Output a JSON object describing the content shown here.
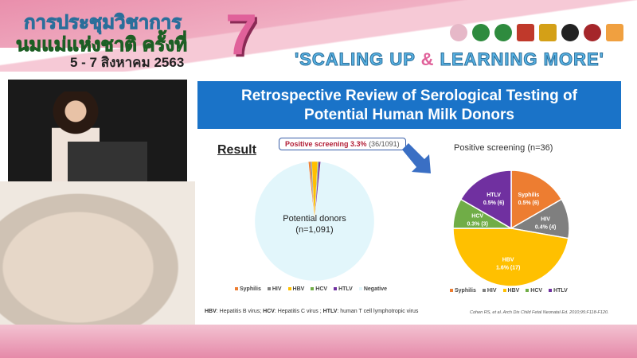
{
  "banner": {
    "line1": "การประชุมวิชาการ",
    "line2": "นมแม่แห่งชาติ ครั้งที่",
    "dates": "5 - 7 สิงหาคม 2563",
    "number": "7",
    "slogan_a": "'SCALING UP ",
    "slogan_amp": "&",
    "slogan_b": " LEARNING MORE'"
  },
  "slide": {
    "title_line1": "Retrospective Review of Serological Testing of",
    "title_line2": "Potential Human Milk Donors",
    "result_label": "Result",
    "callout_bold": "Positive screening 3.3%",
    "callout_count": "(36/1091)",
    "footnote_parts": [
      {
        "b": "HBV",
        "t": ": Hepatitis B virus; "
      },
      {
        "b": "HCV",
        "t": ": Hepatitis C virus ; "
      },
      {
        "b": "HTLV",
        "t": ": human T cell lymphotropic virus"
      }
    ],
    "citation": "Cohen RS, et al. Arch Dis Child Fetal Neonatal Ed. 2010;95:F118-F120."
  },
  "colors": {
    "Syphilis": "#ed7d31",
    "HIV": "#7f7f7f",
    "HBV": "#ffc000",
    "HCV": "#70ad47",
    "HTLV": "#7030a0",
    "Negative": "#e2f6fb"
  },
  "chart_data": [
    {
      "type": "pie",
      "center_label_1": "Potential donors",
      "center_label_2": "(n=1,091)",
      "categories": [
        "Syphilis",
        "HIV",
        "HBV",
        "HCV",
        "HTLV",
        "Negative"
      ],
      "values": [
        6,
        4,
        17,
        3,
        6,
        1055
      ],
      "legend": "bottom"
    },
    {
      "type": "pie",
      "title": "Positive screening (n=36)",
      "categories": [
        "Syphilis",
        "HIV",
        "HBV",
        "HCV",
        "HTLV"
      ],
      "values": [
        6,
        4,
        17,
        3,
        6
      ],
      "labels": [
        "0.5% (6)",
        "0.4% (4)",
        "1.6% (17)",
        "0.3% (3)",
        "0.5% (6)"
      ],
      "legend": "bottom"
    }
  ]
}
